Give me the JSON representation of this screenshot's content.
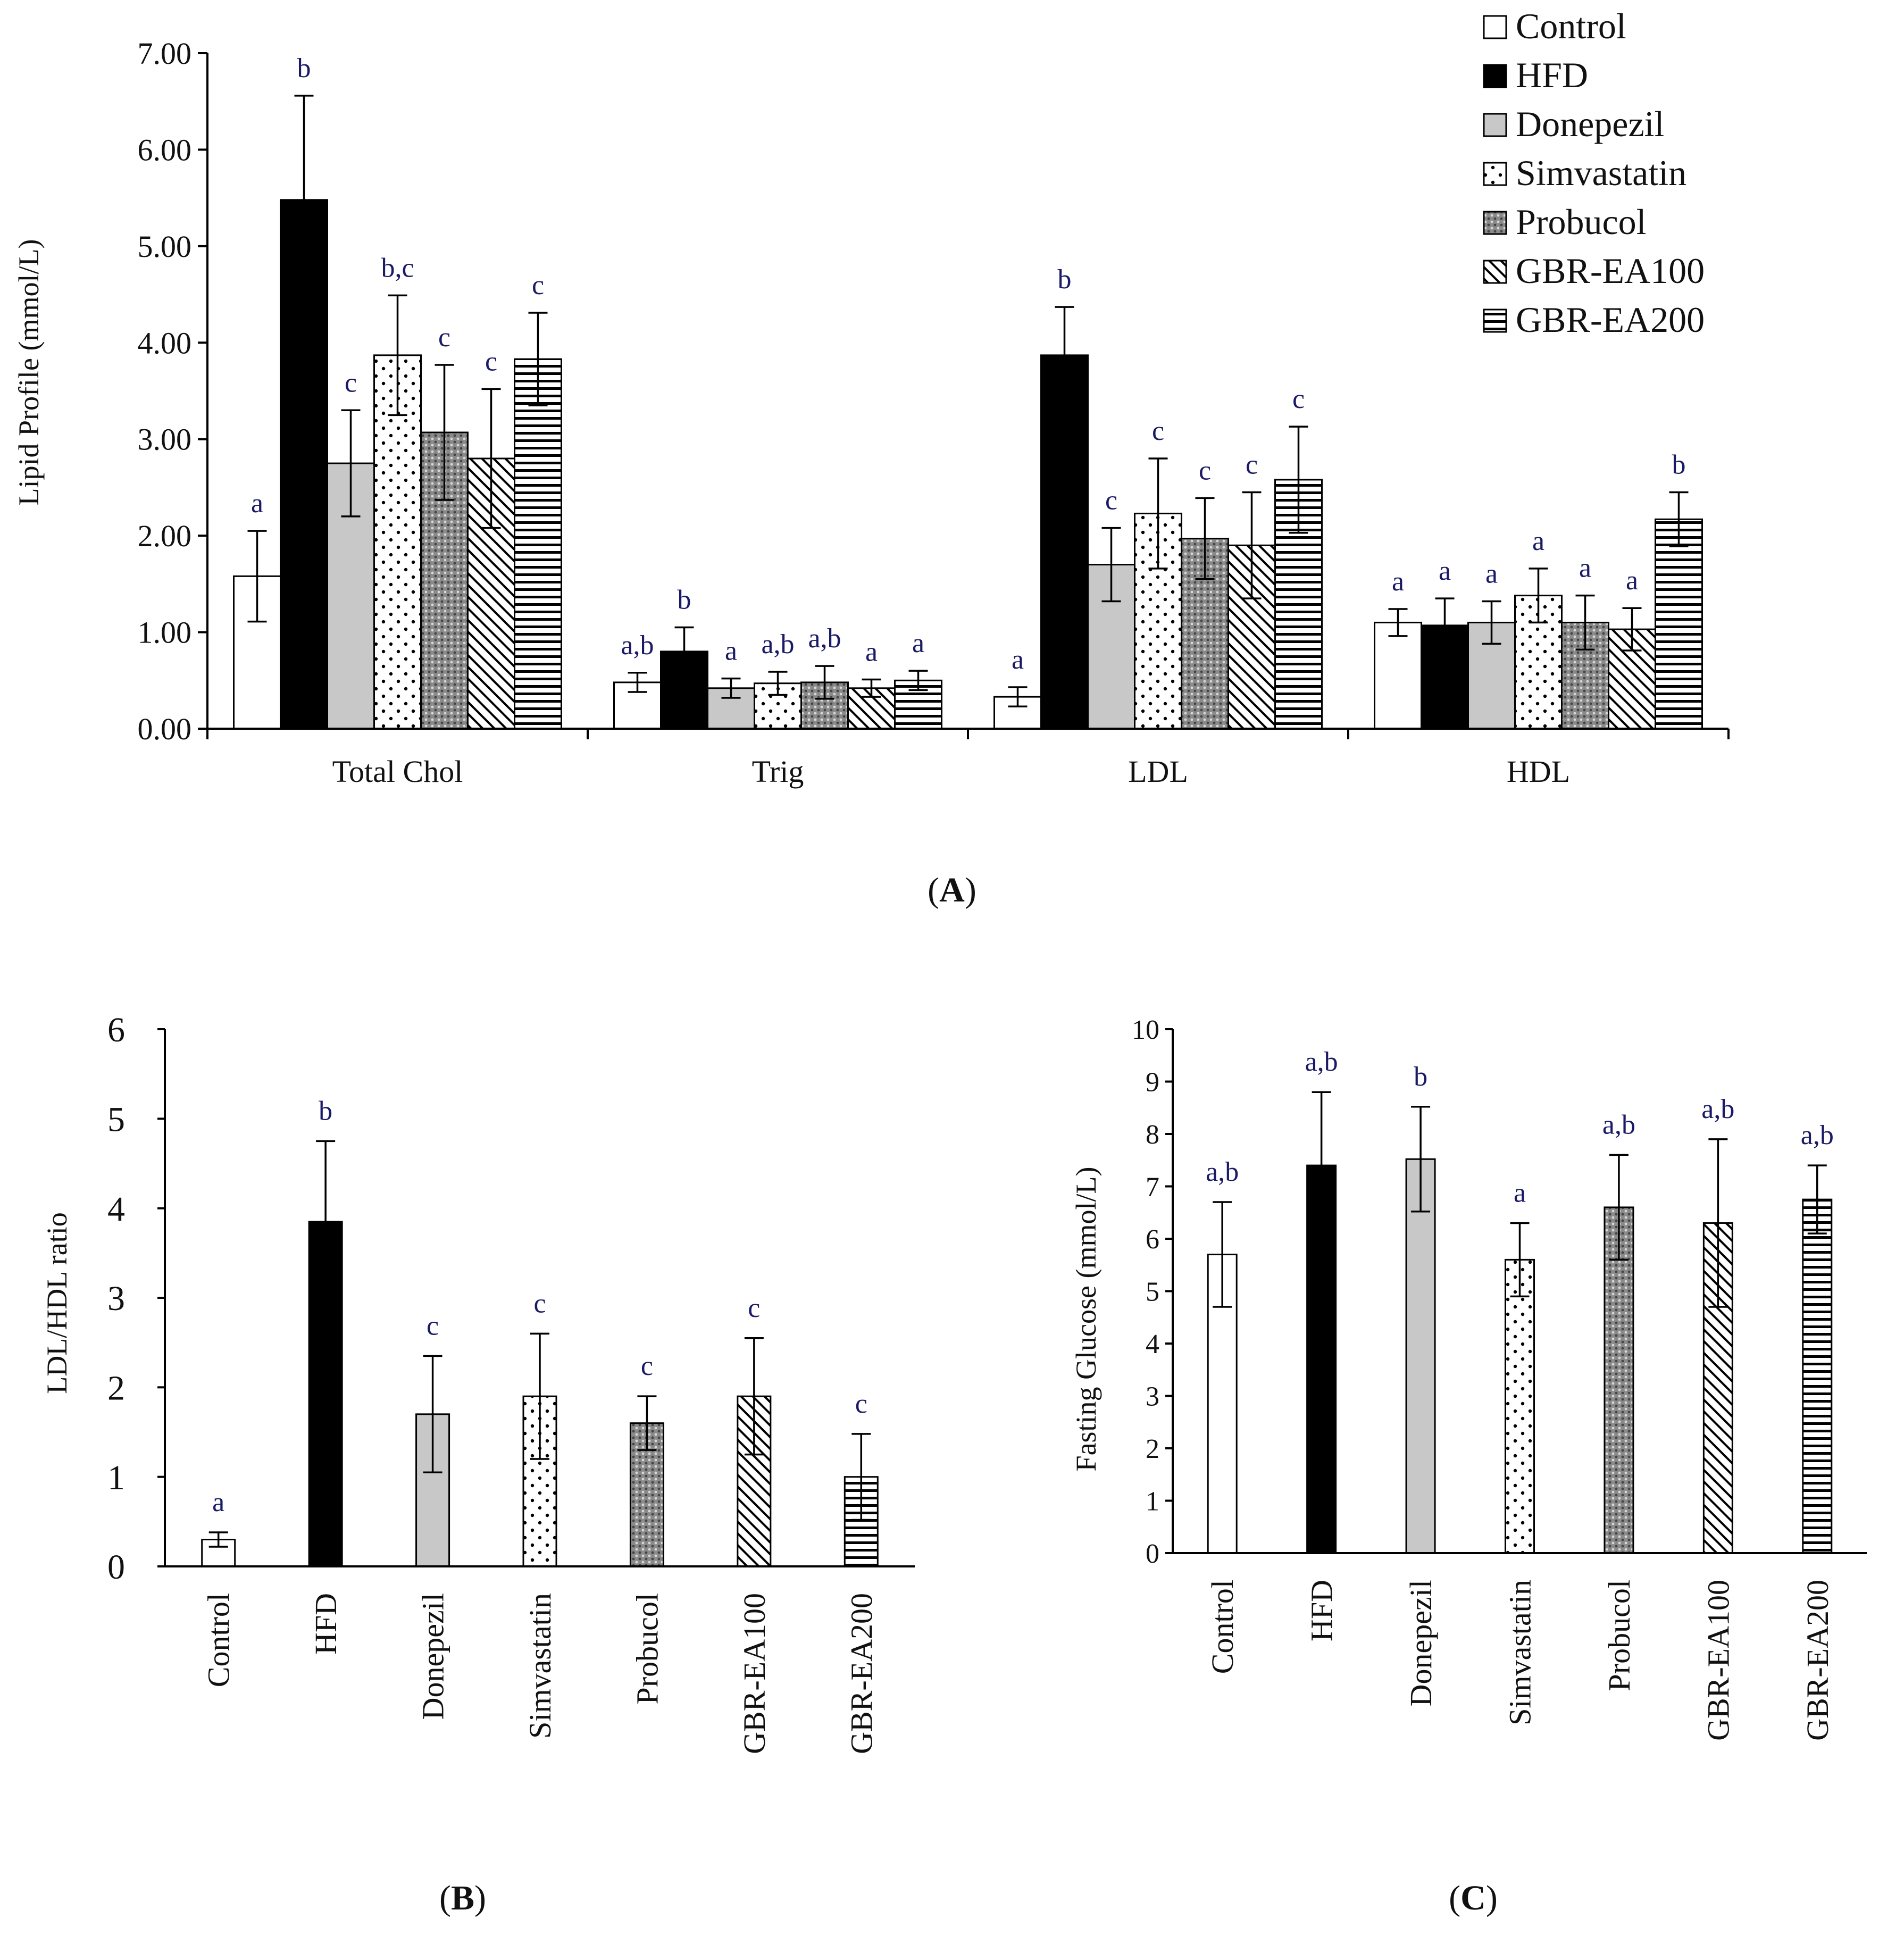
{
  "groups": [
    "Control",
    "HFD",
    "Donepezil",
    "Simvastatin",
    "Probucol",
    "GBR-EA100",
    "GBR-EA200"
  ],
  "chart_data": [
    {
      "type": "bar",
      "panel": "A",
      "panel_label": "A",
      "title": "",
      "xlabel": "",
      "ylabel": "Lipid Profile (mmol/L)",
      "ylim": [
        0,
        7
      ],
      "yticks": [
        "0.00",
        "1.00",
        "2.00",
        "3.00",
        "4.00",
        "5.00",
        "6.00",
        "7.00"
      ],
      "legend_position": "top-right",
      "categories": [
        "Total Chol",
        "Trig",
        "LDL",
        "HDL"
      ],
      "series": [
        {
          "name": "Control",
          "values": [
            1.58,
            0.48,
            0.33,
            1.1
          ],
          "errors": [
            0.47,
            0.1,
            0.1,
            0.14
          ],
          "labels": [
            "a",
            "a,b",
            "a",
            "a"
          ]
        },
        {
          "name": "HFD",
          "values": [
            5.48,
            0.8,
            3.87,
            1.07
          ],
          "errors": [
            1.08,
            0.25,
            0.5,
            0.28
          ],
          "labels": [
            "b",
            "b",
            "b",
            "a"
          ]
        },
        {
          "name": "Donepezil",
          "values": [
            2.75,
            0.42,
            1.7,
            1.1
          ],
          "errors": [
            0.55,
            0.1,
            0.38,
            0.22
          ],
          "labels": [
            "c",
            "a",
            "c",
            "a"
          ]
        },
        {
          "name": "Simvastatin",
          "values": [
            3.87,
            0.47,
            2.23,
            1.38
          ],
          "errors": [
            0.62,
            0.12,
            0.57,
            0.28
          ],
          "labels": [
            "b,c",
            "a,b",
            "c",
            "a"
          ]
        },
        {
          "name": "Probucol",
          "values": [
            3.07,
            0.48,
            1.97,
            1.1
          ],
          "errors": [
            0.7,
            0.17,
            0.42,
            0.28
          ],
          "labels": [
            "c",
            "a,b",
            "c",
            "a"
          ]
        },
        {
          "name": "GBR-EA100",
          "values": [
            2.8,
            0.42,
            1.9,
            1.03
          ],
          "errors": [
            0.72,
            0.09,
            0.55,
            0.22
          ],
          "labels": [
            "c",
            "a",
            "c",
            "a"
          ]
        },
        {
          "name": "GBR-EA200",
          "values": [
            3.83,
            0.5,
            2.58,
            2.17
          ],
          "errors": [
            0.48,
            0.1,
            0.55,
            0.28
          ],
          "labels": [
            "c",
            "a",
            "c",
            "b"
          ]
        }
      ]
    },
    {
      "type": "bar",
      "panel": "B",
      "panel_label": "B",
      "title": "",
      "xlabel": "",
      "ylabel": "LDL/HDL  ratio",
      "ylim": [
        0,
        6
      ],
      "yticks": [
        "0",
        "1",
        "2",
        "3",
        "4",
        "5",
        "6"
      ],
      "categories": [
        "Control",
        "HFD",
        "Donepezil",
        "Simvastatin",
        "Probucol",
        "GBR-EA100",
        "GBR-EA200"
      ],
      "values": [
        0.3,
        3.85,
        1.7,
        1.9,
        1.6,
        1.9,
        1.0
      ],
      "errors": [
        0.08,
        0.9,
        0.65,
        0.7,
        0.3,
        0.65,
        0.48
      ],
      "labels": [
        "a",
        "b",
        "c",
        "c",
        "c",
        "c",
        "c"
      ]
    },
    {
      "type": "bar",
      "panel": "C",
      "panel_label": "C",
      "title": "",
      "xlabel": "",
      "ylabel": "Fasting Glucose (mmol/L)",
      "ylim": [
        0,
        10
      ],
      "yticks": [
        "0",
        "1",
        "2",
        "3",
        "4",
        "5",
        "6",
        "7",
        "8",
        "9",
        "10"
      ],
      "categories": [
        "Control",
        "HFD",
        "Donepezil",
        "Simvastatin",
        "Probucol",
        "GBR-EA100",
        "GBR-EA200"
      ],
      "values": [
        5.7,
        7.4,
        7.52,
        5.6,
        6.6,
        6.3,
        6.75
      ],
      "errors": [
        1.0,
        1.4,
        1.0,
        0.7,
        1.0,
        1.6,
        0.65
      ],
      "labels": [
        "a,b",
        "a,b",
        "b",
        "a",
        "a,b",
        "a,b",
        "a,b"
      ]
    }
  ],
  "styles": {
    "Control": {
      "fill": "#ffffff",
      "pattern": "none"
    },
    "HFD": {
      "fill": "#000000",
      "pattern": "none"
    },
    "Donepezil": {
      "fill": "#c8c8c8",
      "pattern": "none"
    },
    "Simvastatin": {
      "fill": "#ffffff",
      "pattern": "dots"
    },
    "Probucol": {
      "fill": "#8a8a8a",
      "pattern": "grid"
    },
    "GBR-EA100": {
      "fill": "#ffffff",
      "pattern": "diagonal"
    },
    "GBR-EA200": {
      "fill": "#ffffff",
      "pattern": "horizontal"
    }
  }
}
